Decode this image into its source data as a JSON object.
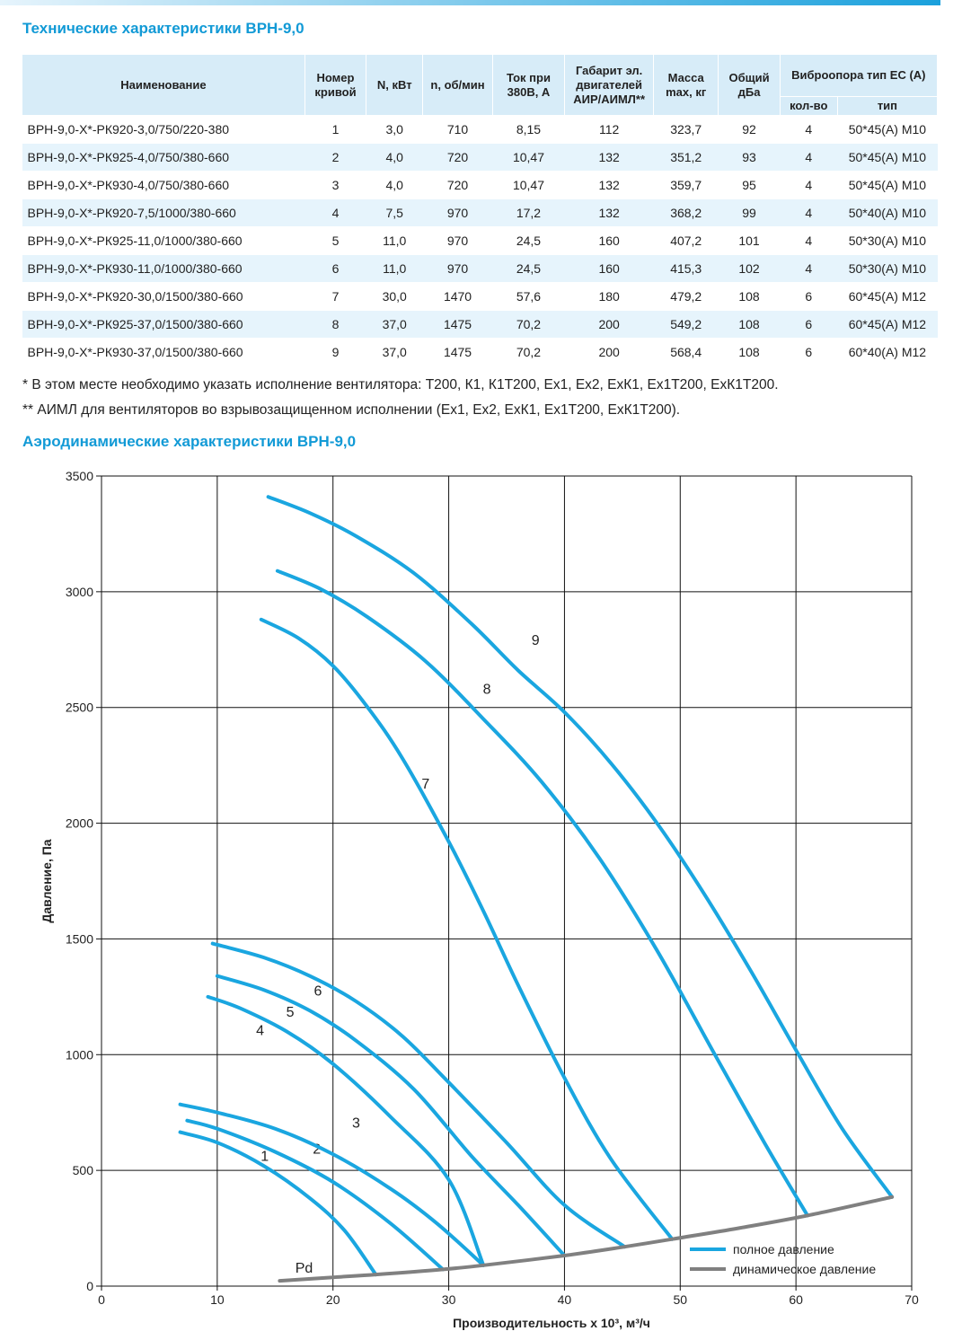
{
  "title_specs": "Технические характеристики ВРН-9,0",
  "title_aero": "Аэродинамические характеристики ВРН-9,0",
  "table": {
    "headers": {
      "name": "Наименование",
      "curve": "Номер кривой",
      "power": "N, кВт",
      "rpm": "n, об/мин",
      "current": "Ток при 380В, А",
      "motor": "Габарит эл. двигателей АИР/АИМЛ**",
      "mass": "Масса max, кг",
      "noise": "Общий дБа",
      "vibro": "Виброопора тип ЕС (А)",
      "vibro_count": "кол-во",
      "vibro_type": "тип"
    },
    "rows": [
      {
        "name": "ВРН-9,0-Х*-РК920-3,0/750/220-380",
        "curve": "1",
        "power": "3,0",
        "rpm": "710",
        "current": "8,15",
        "motor": "112",
        "mass": "323,7",
        "noise": "92",
        "count": "4",
        "type": "50*45(А) М10"
      },
      {
        "name": "ВРН-9,0-Х*-РК925-4,0/750/380-660",
        "curve": "2",
        "power": "4,0",
        "rpm": "720",
        "current": "10,47",
        "motor": "132",
        "mass": "351,2",
        "noise": "93",
        "count": "4",
        "type": "50*45(А) М10"
      },
      {
        "name": "ВРН-9,0-Х*-РК930-4,0/750/380-660",
        "curve": "3",
        "power": "4,0",
        "rpm": "720",
        "current": "10,47",
        "motor": "132",
        "mass": "359,7",
        "noise": "95",
        "count": "4",
        "type": "50*45(А) М10"
      },
      {
        "name": "ВРН-9,0-Х*-РК920-7,5/1000/380-660",
        "curve": "4",
        "power": "7,5",
        "rpm": "970",
        "current": "17,2",
        "motor": "132",
        "mass": "368,2",
        "noise": "99",
        "count": "4",
        "type": "50*40(А) М10"
      },
      {
        "name": "ВРН-9,0-Х*-РК925-11,0/1000/380-660",
        "curve": "5",
        "power": "11,0",
        "rpm": "970",
        "current": "24,5",
        "motor": "160",
        "mass": "407,2",
        "noise": "101",
        "count": "4",
        "type": "50*30(А) М10"
      },
      {
        "name": "ВРН-9,0-Х*-РК930-11,0/1000/380-660",
        "curve": "6",
        "power": "11,0",
        "rpm": "970",
        "current": "24,5",
        "motor": "160",
        "mass": "415,3",
        "noise": "102",
        "count": "4",
        "type": "50*30(А) М10"
      },
      {
        "name": "ВРН-9,0-Х*-РК920-30,0/1500/380-660",
        "curve": "7",
        "power": "30,0",
        "rpm": "1470",
        "current": "57,6",
        "motor": "180",
        "mass": "479,2",
        "noise": "108",
        "count": "6",
        "type": "60*45(А) М12"
      },
      {
        "name": "ВРН-9,0-Х*-РК925-37,0/1500/380-660",
        "curve": "8",
        "power": "37,0",
        "rpm": "1475",
        "current": "70,2",
        "motor": "200",
        "mass": "549,2",
        "noise": "108",
        "count": "6",
        "type": "60*45(А) М12"
      },
      {
        "name": "ВРН-9,0-Х*-РК930-37,0/1500/380-660",
        "curve": "9",
        "power": "37,0",
        "rpm": "1475",
        "current": "70,2",
        "motor": "200",
        "mass": "568,4",
        "noise": "108",
        "count": "6",
        "type": "60*40(А) М12"
      }
    ]
  },
  "notes": [
    "* В этом месте необходимо указать исполнение вентилятора: Т200, К1, К1Т200, Ех1, Ех2, ЕхК1, Ех1Т200, ЕхК1Т200.",
    "** АИМЛ для вентиляторов во взрывозащищенном исполнении (Ех1, Ех2, ЕхК1, Ех1Т200, ЕхК1Т200)."
  ],
  "colors": {
    "accent": "#129ad6",
    "curve_full": "#1aa6e0",
    "curve_dynamic": "#808080",
    "header_bg": "#d7ecf8",
    "row_alt": "#e6f4fc"
  },
  "chart_data": {
    "type": "line",
    "xlabel": "Производительность х 10³, м³/ч",
    "ylabel": "Давление, Па",
    "xlim": [
      0,
      70
    ],
    "ylim": [
      0,
      3500
    ],
    "xticks": [
      0,
      10,
      20,
      30,
      40,
      50,
      60,
      70
    ],
    "yticks": [
      0,
      500,
      1000,
      1500,
      2000,
      2500,
      3000,
      3500
    ],
    "grid": true,
    "legend_position": "bottom-right",
    "legend": [
      "полное давление",
      "динамическое давление"
    ],
    "dynamic_label": "Pd",
    "dynamic_curve": [
      [
        15.4,
        23
      ],
      [
        20,
        38
      ],
      [
        23.7,
        50
      ],
      [
        29.5,
        72
      ],
      [
        33,
        90
      ],
      [
        40,
        132
      ],
      [
        45.2,
        170
      ],
      [
        49.3,
        203
      ],
      [
        55,
        250
      ],
      [
        61,
        305
      ],
      [
        68.3,
        385
      ]
    ],
    "series": [
      {
        "name": "1",
        "label_at": [
          14.1,
          542
        ],
        "points": [
          [
            6.8,
            665
          ],
          [
            10,
            620
          ],
          [
            14,
            520
          ],
          [
            18,
            380
          ],
          [
            21,
            240
          ],
          [
            23.7,
            50
          ]
        ]
      },
      {
        "name": "2",
        "label_at": [
          18.6,
          572
        ],
        "points": [
          [
            7.4,
            715
          ],
          [
            10,
            680
          ],
          [
            15,
            580
          ],
          [
            20,
            450
          ],
          [
            25,
            270
          ],
          [
            29.5,
            72
          ]
        ]
      },
      {
        "name": "3",
        "label_at": [
          22,
          685
        ],
        "points": [
          [
            6.8,
            785
          ],
          [
            10,
            750
          ],
          [
            15,
            680
          ],
          [
            20,
            570
          ],
          [
            25,
            420
          ],
          [
            29,
            270
          ],
          [
            33,
            90
          ]
        ]
      },
      {
        "name": "4",
        "label_at": [
          13.7,
          1085
        ],
        "points": [
          [
            9.2,
            1250
          ],
          [
            12,
            1200
          ],
          [
            16,
            1100
          ],
          [
            20,
            960
          ],
          [
            25,
            730
          ],
          [
            30,
            460
          ],
          [
            33,
            90
          ]
        ]
      },
      {
        "name": "5",
        "label_at": [
          16.3,
          1165
        ],
        "points": [
          [
            10,
            1340
          ],
          [
            14,
            1280
          ],
          [
            18,
            1190
          ],
          [
            22,
            1060
          ],
          [
            27,
            850
          ],
          [
            32,
            560
          ],
          [
            36,
            350
          ],
          [
            40,
            132
          ]
        ]
      },
      {
        "name": "6",
        "label_at": [
          18.7,
          1255
        ],
        "points": [
          [
            9.6,
            1480
          ],
          [
            14,
            1420
          ],
          [
            18,
            1340
          ],
          [
            22,
            1230
          ],
          [
            26,
            1080
          ],
          [
            30,
            880
          ],
          [
            35,
            620
          ],
          [
            40,
            350
          ],
          [
            45.2,
            170
          ]
        ]
      },
      {
        "name": "7",
        "label_at": [
          28,
          2150
        ],
        "points": [
          [
            13.8,
            2880
          ],
          [
            17,
            2800
          ],
          [
            20,
            2680
          ],
          [
            23,
            2500
          ],
          [
            26,
            2280
          ],
          [
            30,
            1920
          ],
          [
            33,
            1620
          ],
          [
            36,
            1300
          ],
          [
            40,
            900
          ],
          [
            44,
            550
          ],
          [
            49.3,
            203
          ]
        ]
      },
      {
        "name": "8",
        "label_at": [
          33.3,
          2560
        ],
        "points": [
          [
            15.2,
            3090
          ],
          [
            19,
            3010
          ],
          [
            23,
            2890
          ],
          [
            28,
            2700
          ],
          [
            33,
            2450
          ],
          [
            38,
            2180
          ],
          [
            43,
            1850
          ],
          [
            48,
            1450
          ],
          [
            53,
            1000
          ],
          [
            57.5,
            600
          ],
          [
            61,
            305
          ]
        ]
      },
      {
        "name": "9",
        "label_at": [
          37.5,
          2770
        ],
        "points": [
          [
            14.4,
            3410
          ],
          [
            18,
            3340
          ],
          [
            22,
            3240
          ],
          [
            27,
            3080
          ],
          [
            32,
            2860
          ],
          [
            36,
            2660
          ],
          [
            40,
            2480
          ],
          [
            44,
            2260
          ],
          [
            48,
            2000
          ],
          [
            52,
            1700
          ],
          [
            56,
            1370
          ],
          [
            60,
            1020
          ],
          [
            64,
            680
          ],
          [
            68.3,
            385
          ]
        ]
      }
    ]
  }
}
